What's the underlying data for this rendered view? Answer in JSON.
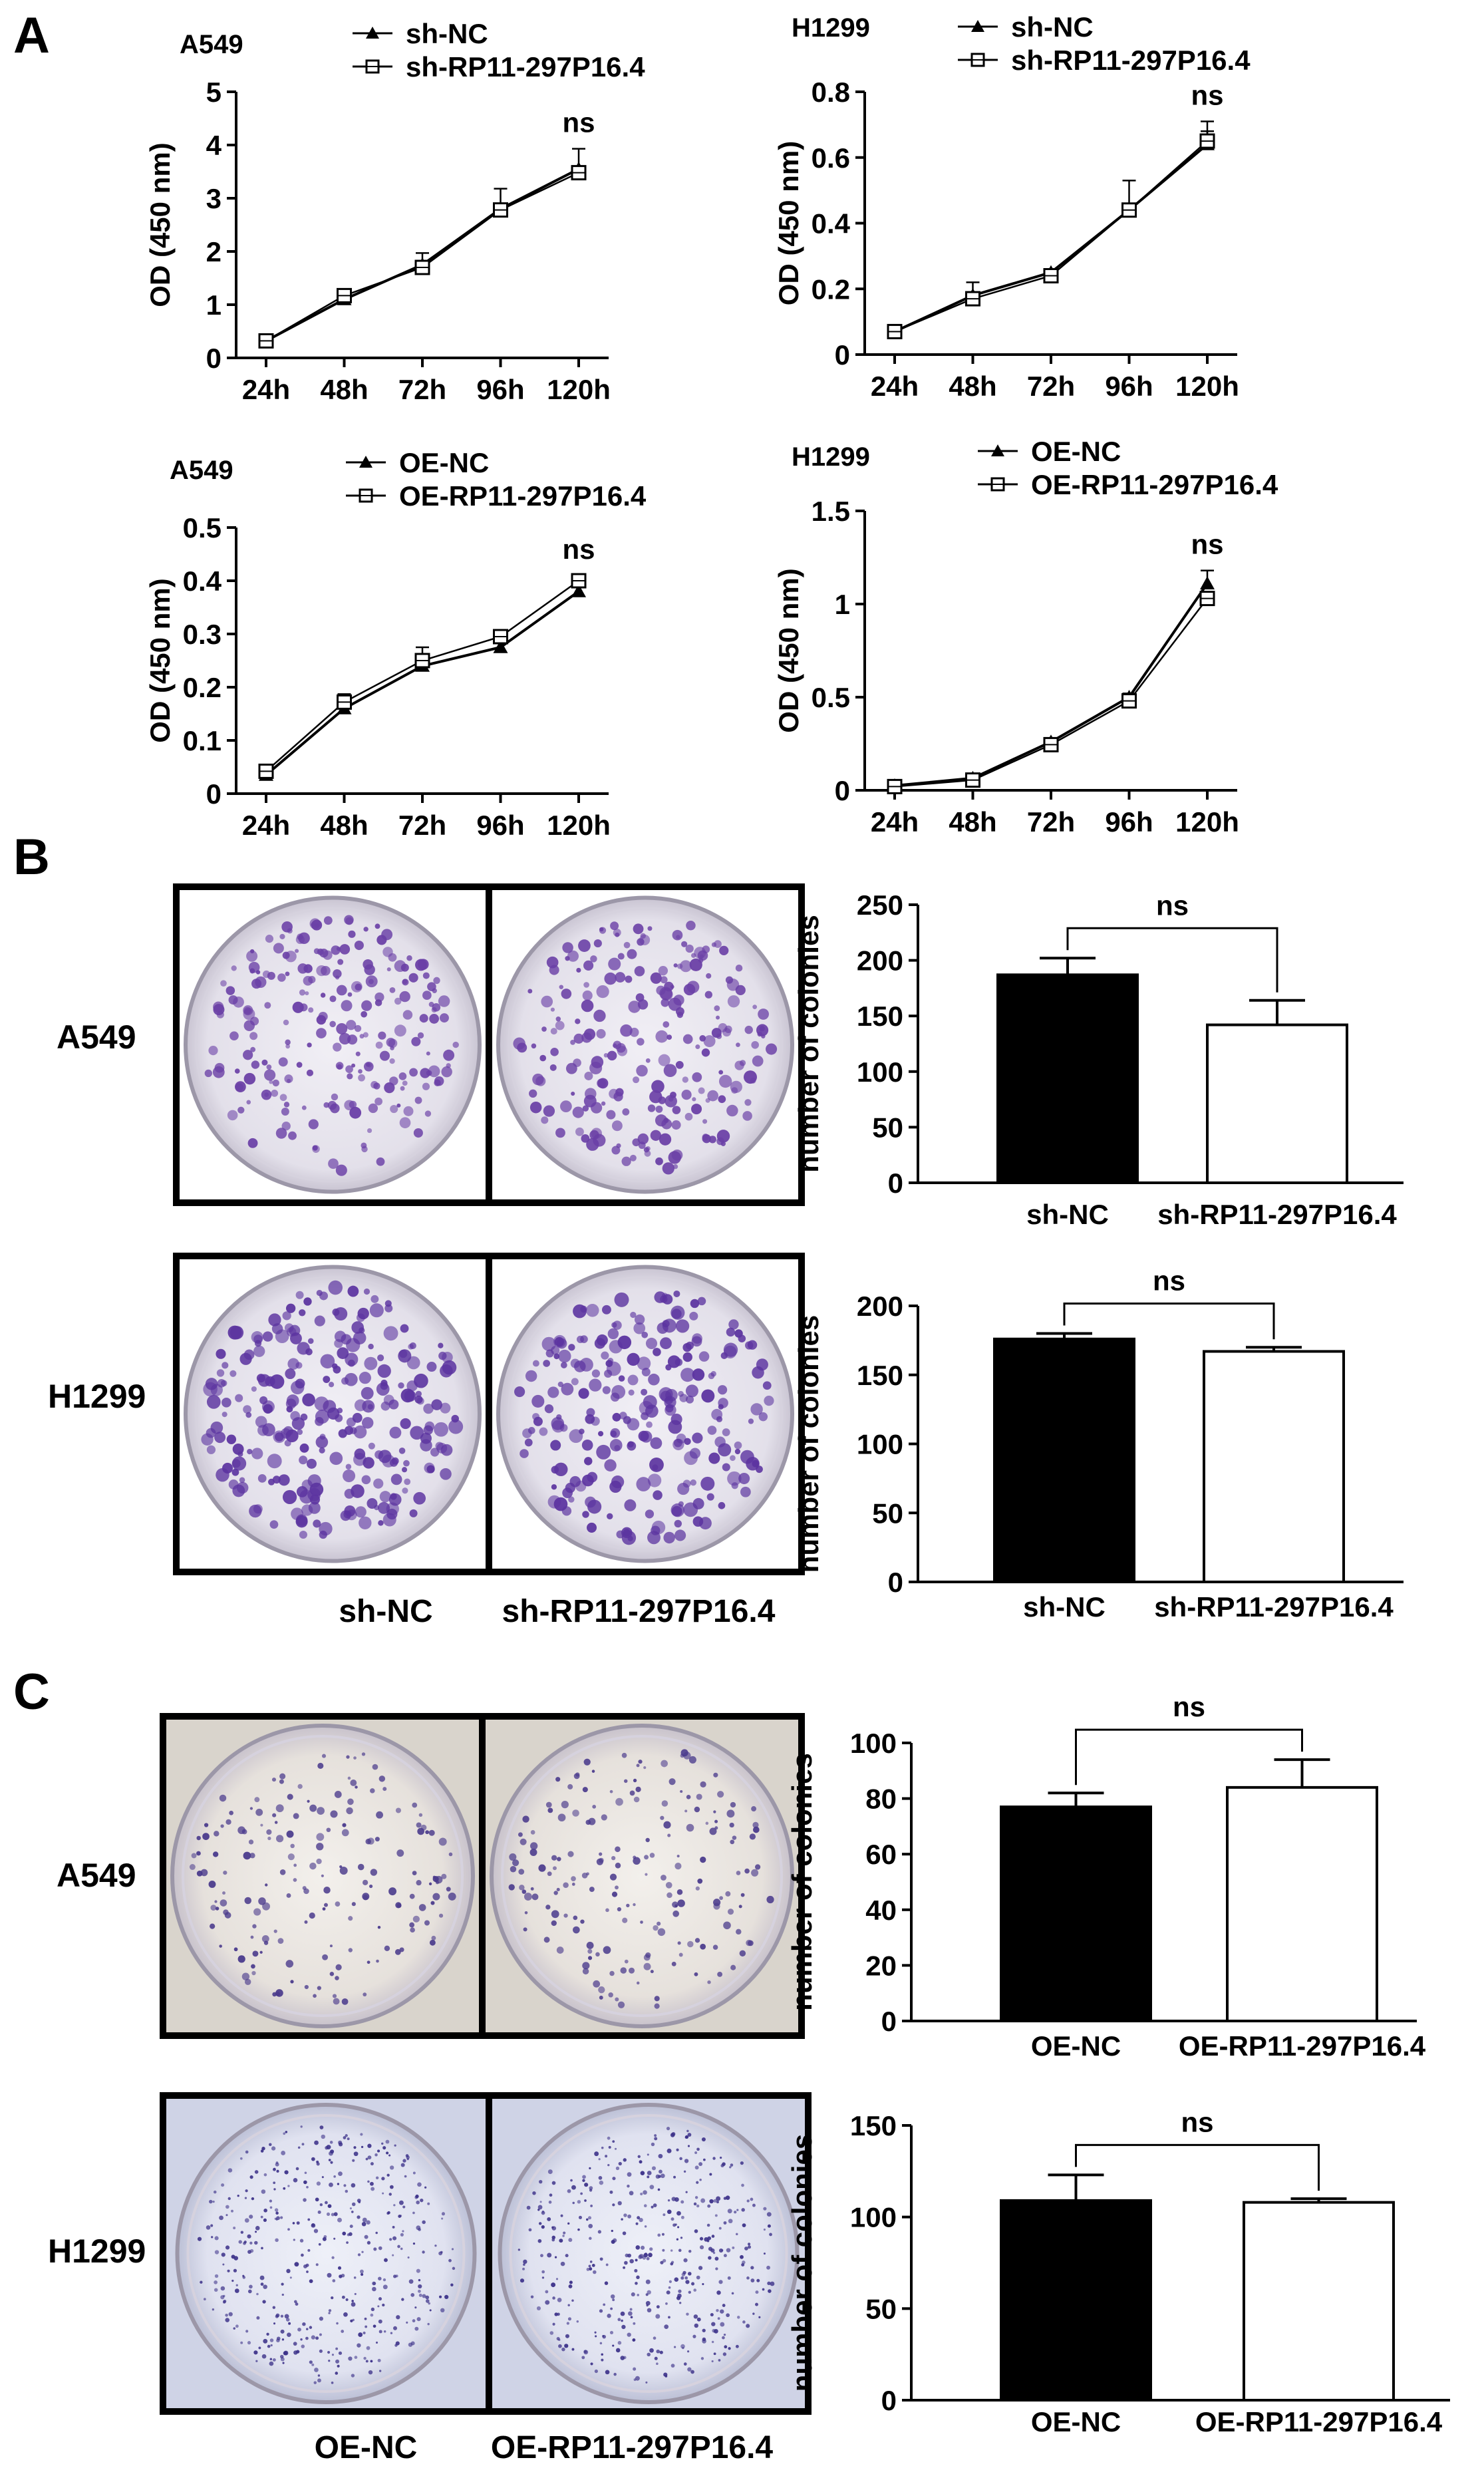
{
  "panels": {
    "a": "A",
    "b": "B",
    "c": "C"
  },
  "panel_b": {
    "row_labels": [
      "A549",
      "H1299"
    ],
    "dish_labels": [
      "sh-NC",
      "sh-RP11-297P16.4"
    ]
  },
  "panel_c": {
    "row_labels": [
      "A549",
      "H1299"
    ],
    "dish_labels": [
      "OE-NC",
      "OE-RP11-297P16.4"
    ]
  },
  "chart_data": [
    {
      "id": "a1",
      "type": "line",
      "title": "A549",
      "ylabel": "OD (450 nm)",
      "x": [
        "24h",
        "48h",
        "72h",
        "96h",
        "120h"
      ],
      "ylim": [
        0,
        5
      ],
      "yticks": [
        0,
        1,
        2,
        3,
        4,
        5
      ],
      "annotation": "ns",
      "series": [
        {
          "name": "sh-NC",
          "marker": "filled-triangle",
          "values": [
            0.32,
            1.1,
            1.75,
            2.8,
            3.55
          ],
          "errors": [
            0.05,
            0.08,
            0.22,
            0.38,
            0.38
          ]
        },
        {
          "name": "sh-RP11-297P16.4",
          "marker": "open-square",
          "values": [
            0.32,
            1.17,
            1.7,
            2.78,
            3.48
          ],
          "errors": [
            0.05,
            0.08,
            0.12,
            0.12,
            0.12
          ]
        }
      ]
    },
    {
      "id": "a2",
      "type": "line",
      "title": "H1299",
      "ylabel": "OD (450 nm)",
      "x": [
        "24h",
        "48h",
        "72h",
        "96h",
        "120h"
      ],
      "ylim": [
        0,
        0.8
      ],
      "yticks": [
        0.0,
        0.2,
        0.4,
        0.6,
        0.8
      ],
      "annotation": "ns",
      "series": [
        {
          "name": "sh-NC",
          "marker": "filled-triangle",
          "values": [
            0.07,
            0.18,
            0.25,
            0.44,
            0.64
          ],
          "errors": [
            0.01,
            0.04,
            0.01,
            0.09,
            0.07
          ]
        },
        {
          "name": "sh-RP11-297P16.4",
          "marker": "open-square",
          "values": [
            0.07,
            0.17,
            0.24,
            0.44,
            0.65
          ],
          "errors": [
            0.01,
            0.02,
            0.01,
            0.02,
            0.03
          ]
        }
      ]
    },
    {
      "id": "a3",
      "type": "line",
      "title": "A549",
      "ylabel": "OD (450 nm)",
      "x": [
        "24h",
        "48h",
        "72h",
        "96h",
        "120h"
      ],
      "ylim": [
        0,
        0.5
      ],
      "yticks": [
        0.0,
        0.1,
        0.2,
        0.3,
        0.4,
        0.5
      ],
      "annotation": "ns",
      "series": [
        {
          "name": "OE-NC",
          "marker": "filled-triangle",
          "values": [
            0.035,
            0.16,
            0.24,
            0.275,
            0.38
          ],
          "errors": [
            0.005,
            0.01,
            0.01,
            0.01,
            0.01
          ]
        },
        {
          "name": "OE-RP11-297P16.4",
          "marker": "open-square",
          "values": [
            0.042,
            0.172,
            0.25,
            0.295,
            0.4
          ],
          "errors": [
            0.005,
            0.015,
            0.025,
            0.01,
            0.01
          ]
        }
      ]
    },
    {
      "id": "a4",
      "type": "line",
      "title": "H1299",
      "ylabel": "OD (450 nm)",
      "x": [
        "24h",
        "48h",
        "72h",
        "96h",
        "120h"
      ],
      "ylim": [
        0,
        1.5
      ],
      "yticks": [
        0.0,
        0.5,
        1.0,
        1.5
      ],
      "annotation": "ns",
      "series": [
        {
          "name": "OE-NC",
          "marker": "filled-triangle",
          "values": [
            0.025,
            0.065,
            0.26,
            0.5,
            1.11
          ],
          "errors": [
            0.005,
            0.01,
            0.02,
            0.02,
            0.07
          ]
        },
        {
          "name": "OE-RP11-297P16.4",
          "marker": "open-square",
          "values": [
            0.02,
            0.055,
            0.245,
            0.48,
            1.03
          ],
          "errors": [
            0.005,
            0.01,
            0.02,
            0.02,
            0.03
          ]
        }
      ]
    },
    {
      "id": "b1",
      "type": "bar",
      "ylabel": "number of colonies",
      "categories": [
        "sh-NC",
        "sh-RP11-297P16.4"
      ],
      "values": [
        187,
        142
      ],
      "errors": [
        15,
        22
      ],
      "bar_colors": [
        "#000000",
        "#ffffff"
      ],
      "ylim": [
        0,
        250
      ],
      "yticks": [
        0,
        50,
        100,
        150,
        200,
        250
      ],
      "annotation": "ns"
    },
    {
      "id": "b2",
      "type": "bar",
      "ylabel": "number of colonies",
      "categories": [
        "sh-NC",
        "sh-RP11-297P16.4"
      ],
      "values": [
        176,
        167
      ],
      "errors": [
        4,
        3
      ],
      "bar_colors": [
        "#000000",
        "#ffffff"
      ],
      "ylim": [
        0,
        200
      ],
      "yticks": [
        0,
        50,
        100,
        150,
        200
      ],
      "annotation": "ns"
    },
    {
      "id": "c1",
      "type": "bar",
      "ylabel": "number of colonies",
      "categories": [
        "OE-NC",
        "OE-RP11-297P16.4"
      ],
      "values": [
        77,
        84
      ],
      "errors": [
        5,
        10
      ],
      "bar_colors": [
        "#000000",
        "#ffffff"
      ],
      "ylim": [
        0,
        100
      ],
      "yticks": [
        0,
        20,
        40,
        60,
        80,
        100
      ],
      "annotation": "ns"
    },
    {
      "id": "c2",
      "type": "bar",
      "ylabel": "number of colonies",
      "categories": [
        "OE-NC",
        "OE-RP11-297P16.4"
      ],
      "values": [
        109,
        108
      ],
      "errors": [
        14,
        2
      ],
      "bar_colors": [
        "#000000",
        "#ffffff"
      ],
      "ylim": [
        0,
        150
      ],
      "yticks": [
        0,
        50,
        100,
        150
      ],
      "annotation": "ns"
    }
  ]
}
